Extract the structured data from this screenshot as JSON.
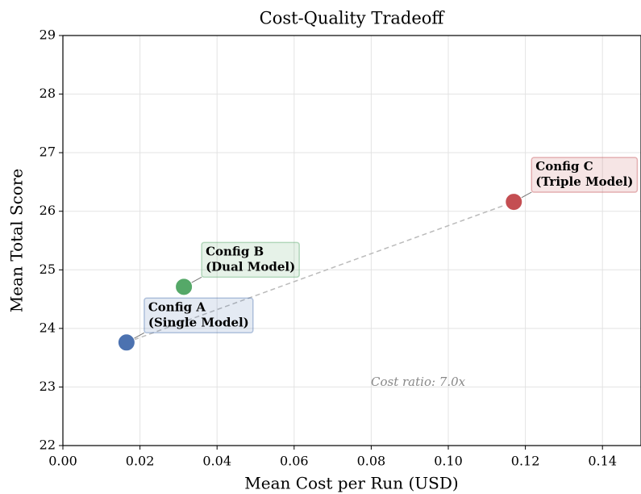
{
  "chart_data": {
    "type": "scatter",
    "title": "Cost-Quality Tradeoff",
    "x_label": "Mean Cost per Run (USD)",
    "y_label": "Mean Total Score",
    "x": [
      0.0165,
      0.0314,
      0.117
    ],
    "values": [
      23.76,
      24.71,
      26.16
    ],
    "colors": [
      "#4c72b0",
      "#55a868",
      "#c44e52"
    ],
    "point_labels": [
      [
        "Config A",
        "(Single Model)"
      ],
      [
        "Config B",
        "(Dual Model)"
      ],
      [
        "Config C",
        "(Triple Model)"
      ]
    ],
    "annotation": "Cost ratio: 7.0x",
    "xlim": [
      0,
      0.15
    ],
    "ylim": [
      22,
      29
    ],
    "xticks": [
      {
        "value": 0,
        "label": "0.00"
      },
      {
        "value": 0.02,
        "label": "0.02"
      },
      {
        "value": 0.04,
        "label": "0.04"
      },
      {
        "value": 0.06,
        "label": "0.06"
      },
      {
        "value": 0.08,
        "label": "0.08"
      },
      {
        "value": 0.1,
        "label": "0.10"
      },
      {
        "value": 0.12,
        "label": "0.12"
      },
      {
        "value": 0.14,
        "label": "0.14"
      }
    ],
    "yticks": [
      22,
      23,
      24,
      25,
      26,
      27,
      28,
      29
    ],
    "grid": true
  }
}
